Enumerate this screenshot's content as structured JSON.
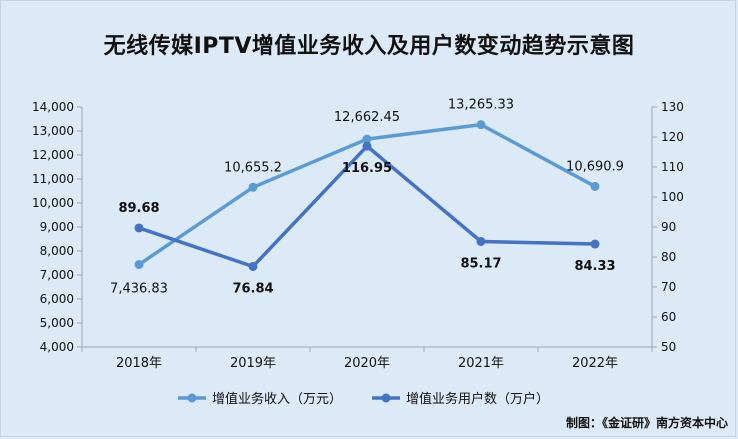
{
  "title": "无线传媒IPTV增值业务收入及用户数变动趋势示意图",
  "credit": "制图：《金证研》南方资本中心",
  "colors": {
    "background": "#dce9f6",
    "revenue": "#5b9bd5",
    "users": "#4472c4",
    "axis": "#9aa7b5"
  },
  "chart_data": {
    "type": "line",
    "categories": [
      "2018年",
      "2019年",
      "2020年",
      "2021年",
      "2022年"
    ],
    "series": [
      {
        "name": "增值业务收入（万元）",
        "axis": "left",
        "values": [
          7436.83,
          10655.2,
          12662.45,
          13265.33,
          10690.9
        ],
        "labels": [
          "7,436.83",
          "10,655.2",
          "12,662.45",
          "13,265.33",
          "10,690.9"
        ]
      },
      {
        "name": "增值业务用户数（万户）",
        "axis": "right",
        "values": [
          89.68,
          76.84,
          116.95,
          85.17,
          84.33
        ],
        "labels": [
          "89.68",
          "76.84",
          "116.95",
          "85.17",
          "84.33"
        ]
      }
    ],
    "y_left": {
      "range": [
        4000,
        14000
      ],
      "ticks": [
        4000,
        5000,
        6000,
        7000,
        8000,
        9000,
        10000,
        11000,
        12000,
        13000,
        14000
      ],
      "tick_labels": [
        "4,000",
        "5,000",
        "6,000",
        "7,000",
        "8,000",
        "9,000",
        "10,000",
        "11,000",
        "12,000",
        "13,000",
        "14,000"
      ]
    },
    "y_right": {
      "range": [
        50,
        130
      ],
      "ticks": [
        50,
        60,
        70,
        80,
        90,
        100,
        110,
        120,
        130
      ],
      "tick_labels": [
        "50",
        "60",
        "70",
        "80",
        "90",
        "100",
        "110",
        "120",
        "130"
      ]
    },
    "grid": false,
    "legend_position": "bottom"
  }
}
